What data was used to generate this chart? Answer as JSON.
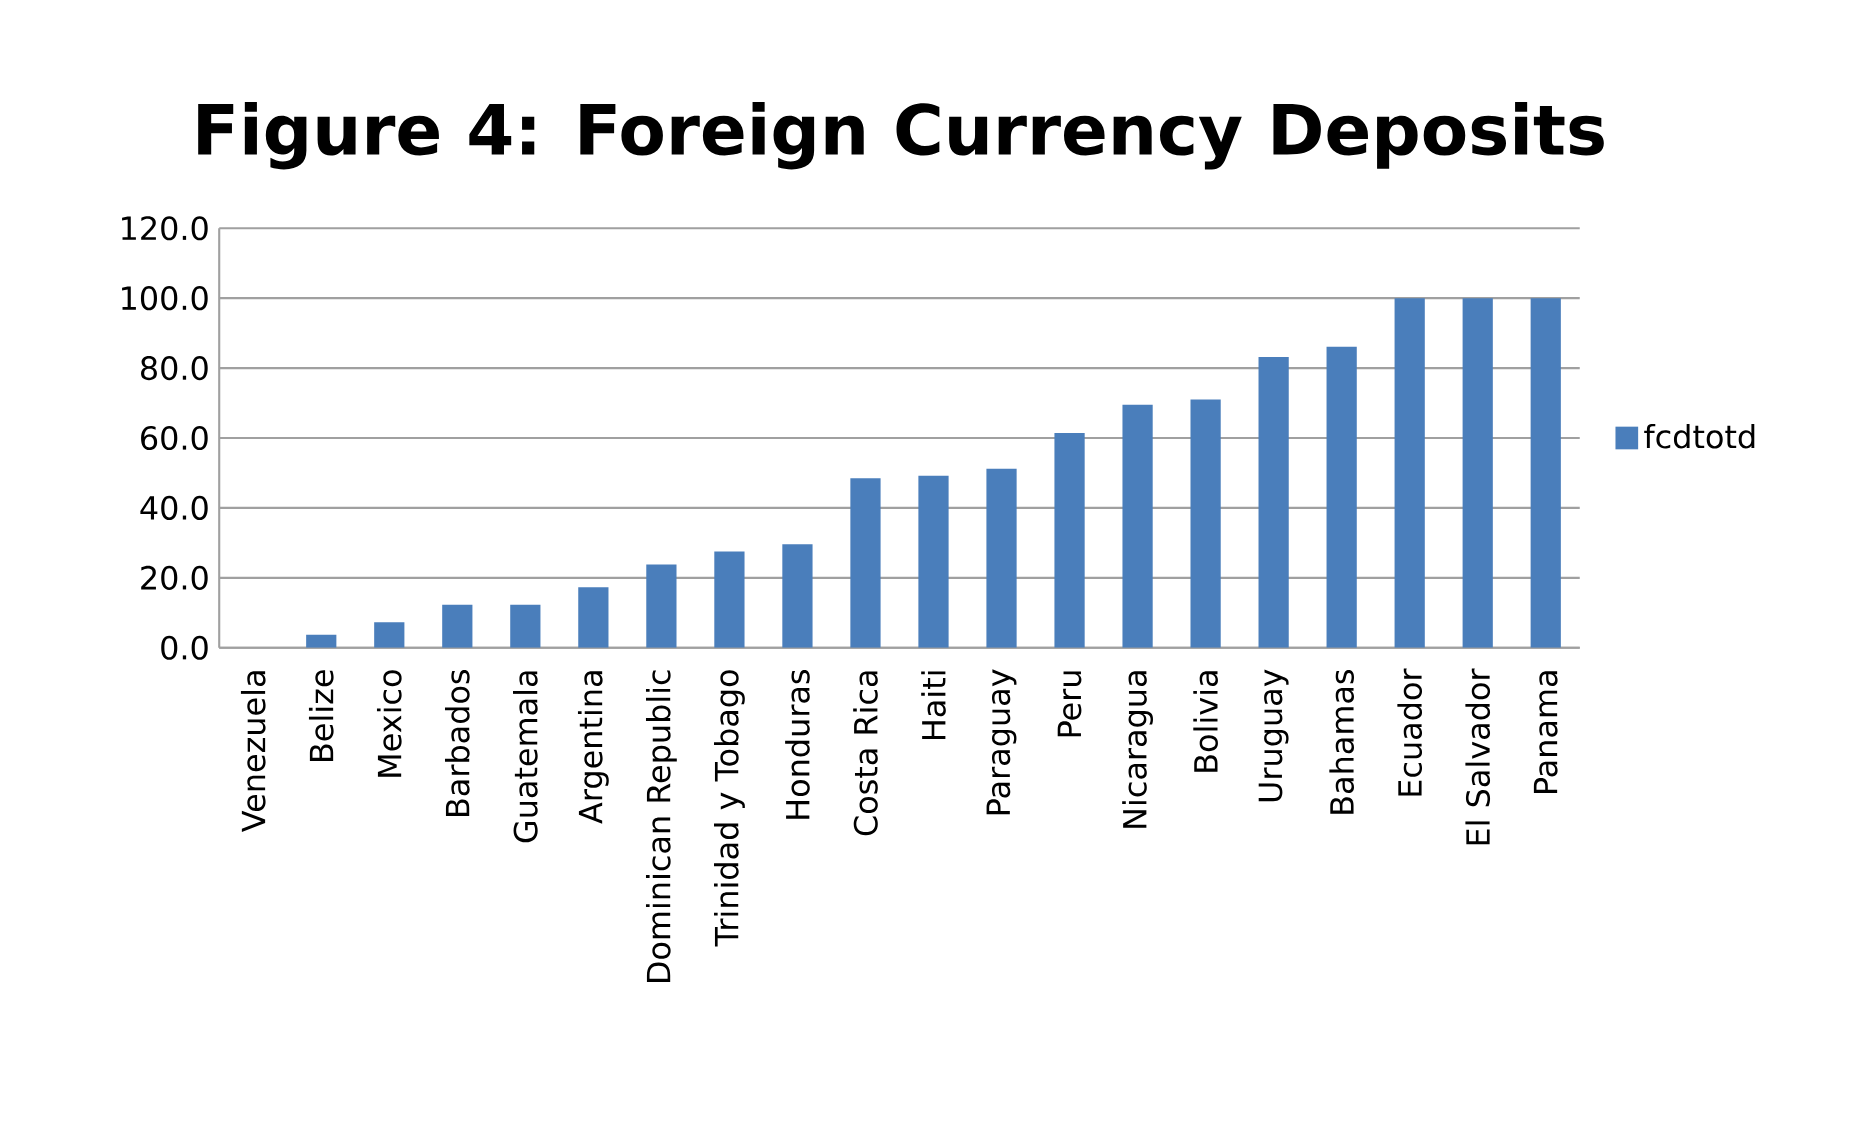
{
  "chart_data": {
    "type": "bar",
    "title": "Figure 4: Foreign Currency Deposits",
    "categories": [
      "Venezuela",
      "Belize",
      "Mexico",
      "Barbados",
      "Guatemala",
      "Argentina",
      "Dominican Republic",
      "Trinidad y Tobago",
      "Honduras",
      "Costa Rica",
      "Haiti",
      "Paraguay",
      "Peru",
      "Nicaragua",
      "Bolivia",
      "Uruguay",
      "Bahamas",
      "Ecuador",
      "El Salvador",
      "Panama"
    ],
    "series": [
      {
        "name": "fcdtotd",
        "color": "#4a7ebb",
        "values": [
          0,
          3.7,
          7.3,
          12.3,
          12.3,
          17.3,
          23.8,
          27.5,
          29.6,
          48.5,
          49.2,
          51.2,
          61.4,
          69.5,
          71.0,
          83.2,
          86.1,
          100,
          100,
          100
        ]
      }
    ],
    "ylim": [
      0,
      120
    ],
    "yticks": [
      {
        "value": 0,
        "label": "0.0"
      },
      {
        "value": 20,
        "label": "20.0"
      },
      {
        "value": 40,
        "label": "40.0"
      },
      {
        "value": 60,
        "label": "60.0"
      },
      {
        "value": 80,
        "label": "80.0"
      },
      {
        "value": 100,
        "label": "100.0"
      },
      {
        "value": 120,
        "label": "120.0"
      }
    ],
    "grid": "y",
    "legend": "right"
  }
}
